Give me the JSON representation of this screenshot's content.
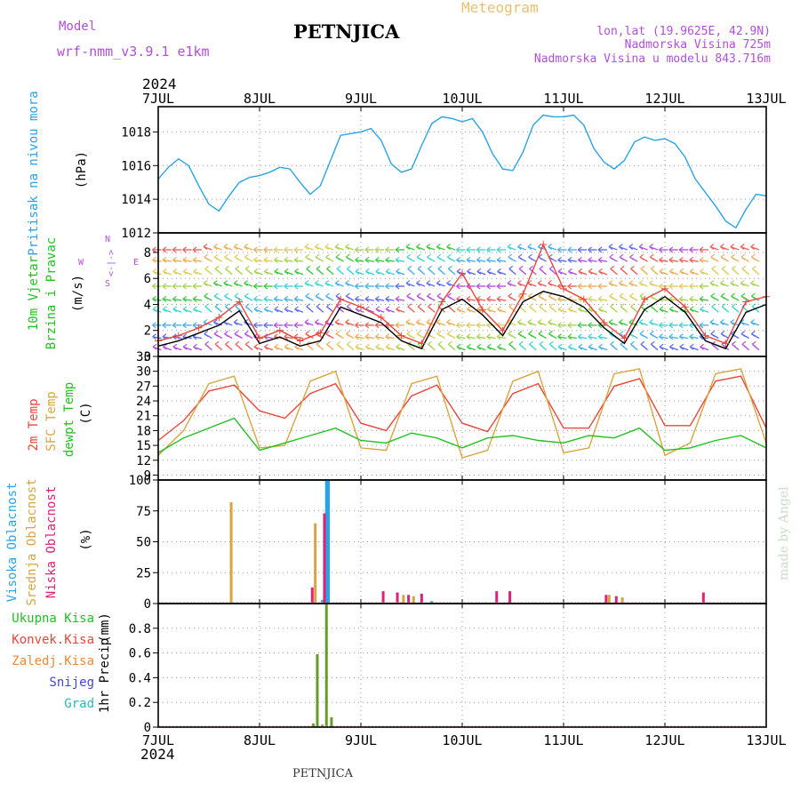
{
  "header": {
    "model_label": "Model",
    "model_name": "wrf-nmm_v3.9.1  e1km",
    "station": "PETNJICA",
    "meteogram_label": "Meteogram",
    "lonlat": "lon,lat (19.9625E, 42.9N)",
    "elevation": "Nadmorska Visina 725m",
    "model_elevation": "Nadmorska Visina u modelu 843.716m",
    "year_top": "2024",
    "year_bottom": "2024",
    "footer_station": "PETNJICA",
    "credit": "made by Angel"
  },
  "colors": {
    "pressure": "#2aa3e6",
    "temp2m": "#e8463c",
    "sfctemp": "#d9a440",
    "dewpoint": "#22c022",
    "high_cloud": "#2aa3e6",
    "mid_cloud": "#d9a440",
    "low_cloud": "#dd2277",
    "total_precip": "#6a9a2a",
    "wind_line": "#000000",
    "gust": "#e8463c"
  },
  "chart_data": [
    {
      "type": "line",
      "id": "pressure",
      "ylabel": "Pritisak na nivou mora",
      "unit": "(hPa)",
      "ylim": [
        1012,
        1019.5
      ],
      "yticks": [
        1012,
        1014,
        1016,
        1018
      ],
      "x_ticks": [
        "7JUL",
        "8JUL",
        "9JUL",
        "10JUL",
        "11JUL",
        "12JUL",
        "13JUL"
      ],
      "series": [
        {
          "color_key": "pressure",
          "x": [
            0,
            0.1,
            0.2,
            0.3,
            0.4,
            0.5,
            0.6,
            0.7,
            0.8,
            0.9,
            1.0,
            1.1,
            1.2,
            1.3,
            1.4,
            1.5,
            1.6,
            1.7,
            1.8,
            1.9,
            2.0,
            2.1,
            2.2,
            2.3,
            2.4,
            2.5,
            2.6,
            2.7,
            2.8,
            2.9,
            3.0,
            3.1,
            3.2,
            3.3,
            3.4,
            3.5,
            3.6,
            3.7,
            3.8,
            3.9,
            4.0,
            4.1,
            4.2,
            4.3,
            4.4,
            4.5,
            4.6,
            4.7,
            4.8,
            4.9,
            5.0,
            5.1,
            5.2,
            5.3,
            5.4,
            5.5,
            5.6,
            5.7,
            5.8,
            5.9,
            6.0
          ],
          "y": [
            1015.2,
            1015.9,
            1016.4,
            1016.0,
            1014.8,
            1013.7,
            1013.3,
            1014.2,
            1015.0,
            1015.3,
            1015.4,
            1015.6,
            1015.9,
            1015.8,
            1015.0,
            1014.3,
            1014.8,
            1016.3,
            1017.8,
            1017.9,
            1018.0,
            1018.2,
            1017.5,
            1016.1,
            1015.6,
            1015.8,
            1017.2,
            1018.5,
            1018.9,
            1018.8,
            1018.6,
            1018.8,
            1018.0,
            1016.7,
            1015.8,
            1015.7,
            1016.8,
            1018.4,
            1019.0,
            1018.9,
            1018.9,
            1019.0,
            1018.4,
            1017.0,
            1016.2,
            1015.8,
            1016.3,
            1017.4,
            1017.7,
            1017.5,
            1017.6,
            1017.3,
            1016.5,
            1015.2,
            1014.4,
            1013.6,
            1012.7,
            1012.3,
            1013.4,
            1014.3,
            1014.2
          ]
        }
      ]
    },
    {
      "type": "line",
      "id": "wind",
      "ylabel": "10m Vjetar Brzina i Pravac",
      "unit": "(m/s)",
      "ylim": [
        0,
        9.5
      ],
      "yticks": [
        0,
        2,
        4,
        6,
        8
      ],
      "compass": [
        "W",
        "<-|->",
        "E",
        "N",
        "S"
      ],
      "series": [
        {
          "name": "speed",
          "color_key": "wind_line",
          "x": [
            0,
            0.2,
            0.4,
            0.6,
            0.8,
            1.0,
            1.2,
            1.4,
            1.6,
            1.8,
            2.0,
            2.2,
            2.4,
            2.6,
            2.8,
            3.0,
            3.2,
            3.4,
            3.6,
            3.8,
            4.0,
            4.2,
            4.4,
            4.6,
            4.8,
            5.0,
            5.2,
            5.4,
            5.6,
            5.8,
            6.0
          ],
          "y": [
            0.8,
            1.2,
            1.8,
            2.4,
            3.5,
            1.0,
            1.5,
            0.8,
            1.2,
            3.8,
            3.2,
            2.6,
            1.2,
            0.6,
            3.6,
            4.4,
            3.2,
            1.6,
            4.2,
            5.0,
            4.6,
            3.8,
            2.2,
            1.0,
            3.6,
            4.6,
            3.4,
            1.2,
            0.6,
            3.4,
            4.0
          ]
        },
        {
          "name": "gust",
          "color_key": "gust",
          "x": [
            0,
            0.2,
            0.4,
            0.6,
            0.8,
            1.0,
            1.2,
            1.4,
            1.6,
            1.8,
            2.0,
            2.2,
            2.4,
            2.6,
            2.8,
            3.0,
            3.2,
            3.4,
            3.6,
            3.8,
            4.0,
            4.2,
            4.4,
            4.6,
            4.8,
            5.0,
            5.2,
            5.4,
            5.6,
            5.8,
            6.0
          ],
          "y": [
            1.2,
            1.6,
            2.2,
            3.0,
            4.2,
            1.4,
            2.0,
            1.2,
            1.8,
            4.4,
            3.8,
            3.0,
            1.6,
            1.0,
            4.2,
            6.4,
            3.6,
            2.0,
            4.8,
            8.6,
            5.2,
            4.4,
            2.6,
            1.4,
            4.4,
            5.2,
            3.8,
            1.6,
            1.0,
            4.2,
            4.6
          ]
        }
      ]
    },
    {
      "type": "line",
      "id": "temperature",
      "ylabel": [
        "2m Temp",
        "SFC Temp",
        "dewpt Temp"
      ],
      "unit": "(C)",
      "ylim": [
        8,
        33
      ],
      "yticks": [
        9,
        12,
        15,
        18,
        21,
        24,
        27,
        30,
        33
      ],
      "series": [
        {
          "name": "2m Temp",
          "color_key": "temp2m",
          "x": [
            0,
            0.25,
            0.5,
            0.75,
            1.0,
            1.25,
            1.5,
            1.75,
            2.0,
            2.25,
            2.5,
            2.75,
            3.0,
            3.25,
            3.5,
            3.75,
            4.0,
            4.25,
            4.5,
            4.75,
            5.0,
            5.25,
            5.5,
            5.75,
            6.0
          ],
          "y": [
            16.0,
            20.0,
            26.0,
            27.2,
            22.0,
            20.5,
            25.5,
            27.5,
            19.5,
            18.0,
            25.0,
            27.2,
            19.5,
            17.8,
            25.5,
            27.5,
            18.5,
            18.5,
            27.0,
            28.5,
            19.0,
            19.0,
            28.0,
            29.0,
            18.5
          ]
        },
        {
          "name": "SFC Temp",
          "color_key": "sfctemp",
          "x": [
            0,
            0.25,
            0.5,
            0.75,
            1.0,
            1.25,
            1.5,
            1.75,
            2.0,
            2.25,
            2.5,
            2.75,
            3.0,
            3.25,
            3.5,
            3.75,
            4.0,
            4.25,
            4.5,
            4.75,
            5.0,
            5.25,
            5.5,
            5.75,
            6.0
          ],
          "y": [
            13.0,
            18.0,
            27.5,
            29.0,
            14.5,
            15.0,
            28.0,
            30.0,
            14.5,
            14.0,
            27.5,
            29.0,
            12.5,
            14.0,
            28.0,
            30.0,
            13.5,
            14.5,
            29.5,
            30.5,
            13.0,
            15.5,
            29.5,
            30.5,
            15.5
          ]
        },
        {
          "name": "dewpt Temp",
          "color_key": "dewpoint",
          "x": [
            0,
            0.25,
            0.5,
            0.75,
            1.0,
            1.25,
            1.5,
            1.75,
            2.0,
            2.25,
            2.5,
            2.75,
            3.0,
            3.25,
            3.5,
            3.75,
            4.0,
            4.25,
            4.5,
            4.75,
            5.0,
            5.25,
            5.5,
            5.75,
            6.0
          ],
          "y": [
            13.5,
            16.5,
            18.5,
            20.5,
            14.0,
            15.5,
            17.0,
            18.5,
            16.0,
            15.5,
            17.5,
            16.5,
            14.5,
            16.5,
            17.0,
            16.0,
            15.5,
            17.0,
            16.5,
            18.5,
            14.0,
            14.5,
            16.0,
            17.0,
            14.5
          ]
        }
      ]
    },
    {
      "type": "bar",
      "id": "clouds",
      "ylabel": [
        "Visoka Oblacnost",
        "Srednja Oblacnost",
        "Niska Oblacnost"
      ],
      "unit": "(%)",
      "ylim": [
        0,
        100
      ],
      "yticks": [
        0,
        25,
        50,
        75,
        100
      ],
      "series": [
        {
          "name": "Visoka Oblacnost",
          "color_key": "high_cloud",
          "x": [
            1.62,
            1.66,
            1.68,
            2.7
          ],
          "values": [
            3,
            100,
            100,
            2
          ]
        },
        {
          "name": "Srednja Oblacnost",
          "color_key": "mid_cloud",
          "x": [
            0.72,
            1.55,
            2.42,
            2.52,
            4.45,
            4.58
          ],
          "values": [
            82,
            65,
            7,
            6,
            7,
            5
          ]
        },
        {
          "name": "Niska Oblacnost",
          "color_key": "low_cloud",
          "x": [
            1.52,
            1.64,
            2.22,
            2.36,
            2.47,
            2.6,
            3.34,
            3.47,
            4.42,
            4.52,
            5.38
          ],
          "values": [
            13,
            73,
            10,
            9,
            7,
            8,
            10,
            10,
            7,
            6,
            9
          ]
        }
      ]
    },
    {
      "type": "bar",
      "id": "precip",
      "ylabel": "1hr Precip",
      "unit": "(mm)",
      "ylim": [
        0,
        1.0
      ],
      "yticks": [
        0,
        0.2,
        0.4,
        0.6,
        0.8
      ],
      "legend": [
        "Ukupna Kisa",
        "Konvek.Kisa",
        "Zaledj.Kisa",
        "Snijeg",
        "Grad"
      ],
      "legend_colors": [
        "#22c022",
        "#e8463c",
        "#e88a3c",
        "#4444dd",
        "#22bbbb"
      ],
      "series": [
        {
          "name": "Ukupna Kisa",
          "color_key": "total_precip",
          "x": [
            1.53,
            1.57,
            1.62,
            1.66,
            1.71
          ],
          "values": [
            0.03,
            0.59,
            0.02,
            1.0,
            0.08
          ]
        }
      ]
    }
  ]
}
